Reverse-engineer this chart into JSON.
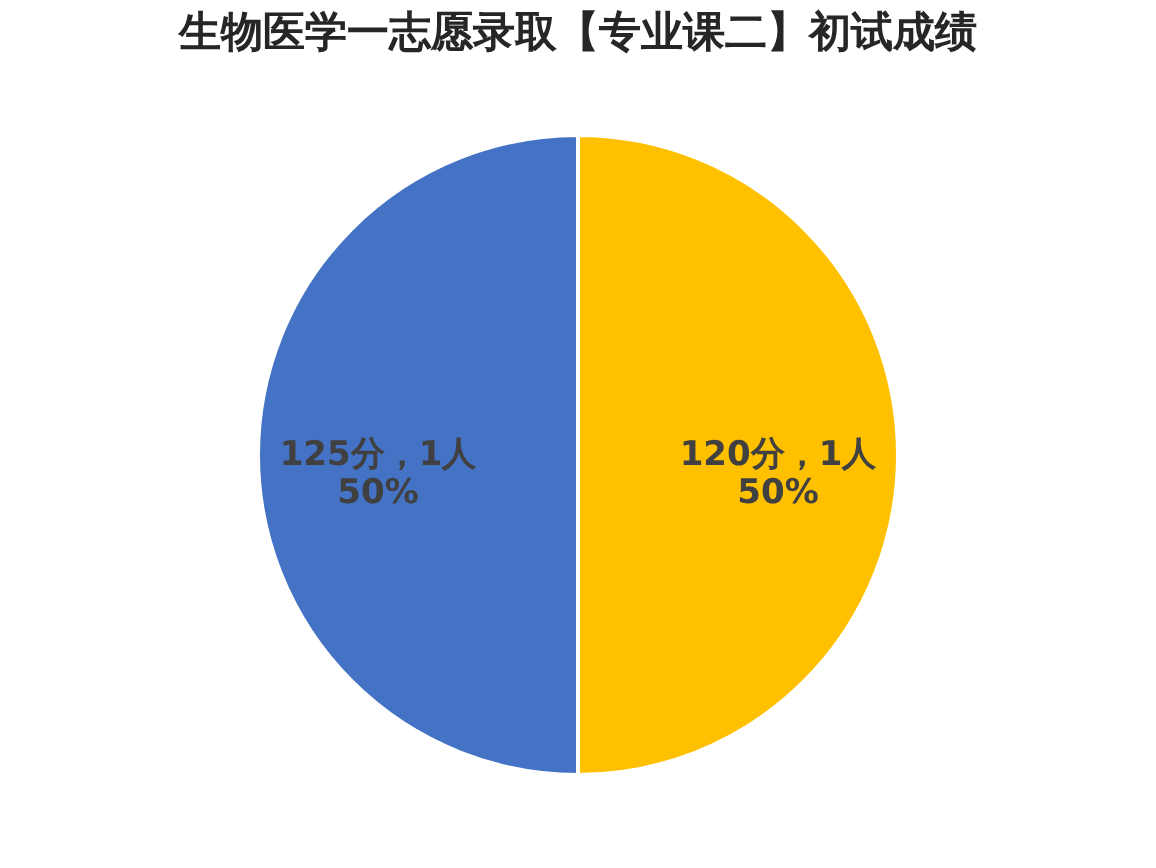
{
  "chart_data": {
    "type": "pie",
    "title": "生物医学一志愿录取【专业课二】初试成绩",
    "categories": [
      "120分，1人",
      "125分，1人"
    ],
    "values": [
      50,
      50
    ],
    "value_labels": [
      "50%",
      "50%"
    ],
    "colors": [
      "#ffc000",
      "#4472c4"
    ],
    "legend": false
  }
}
